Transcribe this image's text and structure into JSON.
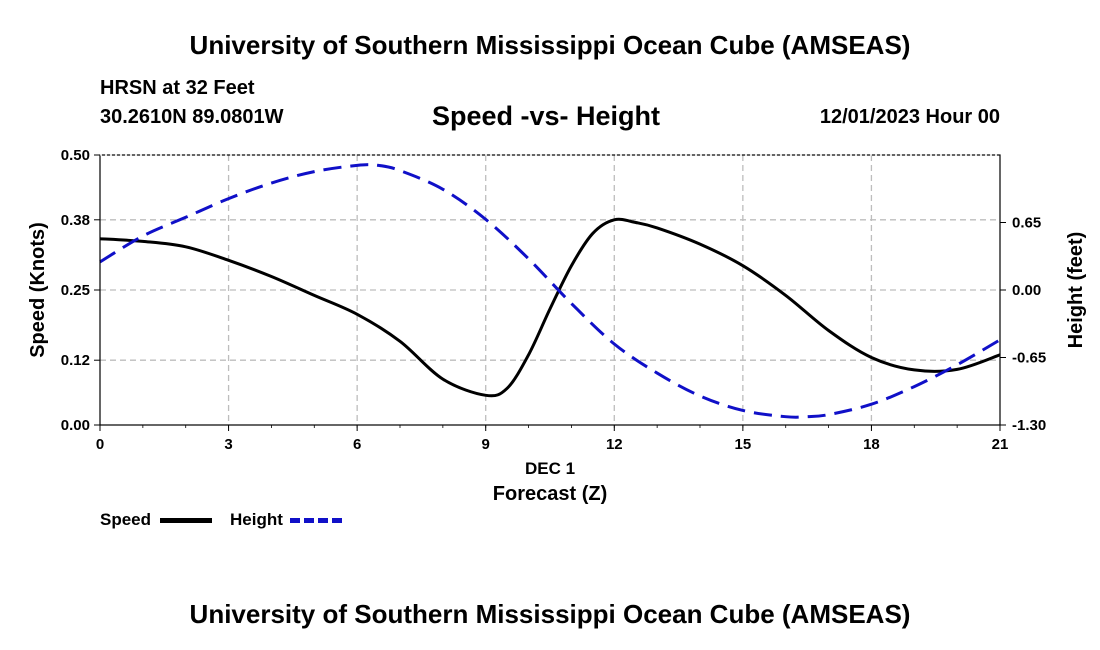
{
  "header": {
    "title": "University of Southern Mississippi Ocean Cube (AMSEAS)",
    "station": "HRSN at 32 Feet",
    "coords": "30.2610N  89.0801W",
    "subtitle": "Speed -vs- Height",
    "datetime": "12/01/2023 Hour 00"
  },
  "footer": {
    "title": "University of Southern Mississippi Ocean Cube (AMSEAS)"
  },
  "legend": {
    "speed": "Speed",
    "height": "Height"
  },
  "colors": {
    "speed": "#000000",
    "height": "#1010c8",
    "grid": "#bdbdbd"
  },
  "chart_data": {
    "type": "line",
    "title": "Speed -vs- Height",
    "xlabel": "Forecast (Z)",
    "xlabel_date": "DEC 1",
    "ylabel_left": "Speed (Knots)",
    "ylabel_right": "Height (feet)",
    "x_ticks": [
      0,
      3,
      6,
      9,
      12,
      15,
      18,
      21
    ],
    "xlim": [
      0,
      21
    ],
    "y_left_ticks": [
      "0.00",
      "0.12",
      "0.25",
      "0.38",
      "0.50"
    ],
    "y_left_lim": [
      0,
      0.5
    ],
    "y_right_ticks": [
      "-1.30",
      "-0.65",
      "0.00",
      "0.65"
    ],
    "y_right_lim": [
      -1.3,
      1.3
    ],
    "grid": true,
    "legend_position": "bottom-left",
    "series": [
      {
        "name": "Speed",
        "axis": "left",
        "style": "solid",
        "x": [
          0,
          1,
          2,
          3,
          4,
          5,
          6,
          7,
          8,
          9,
          9.5,
          10,
          10.5,
          11,
          11.5,
          12,
          12.5,
          13,
          14,
          15,
          16,
          17,
          18,
          19,
          20,
          21
        ],
        "values": [
          0.345,
          0.34,
          0.33,
          0.305,
          0.275,
          0.24,
          0.205,
          0.155,
          0.085,
          0.055,
          0.068,
          0.13,
          0.215,
          0.295,
          0.355,
          0.38,
          0.375,
          0.365,
          0.335,
          0.295,
          0.24,
          0.175,
          0.125,
          0.102,
          0.103,
          0.13
        ]
      },
      {
        "name": "Height",
        "axis": "right",
        "style": "dashed",
        "x": [
          0,
          1,
          2,
          3,
          4,
          5,
          6,
          6.5,
          7,
          8,
          9,
          10,
          11,
          12,
          13,
          14,
          15,
          16,
          16.5,
          17,
          18,
          19,
          20,
          21
        ],
        "values": [
          0.27,
          0.52,
          0.7,
          0.88,
          1.03,
          1.14,
          1.2,
          1.2,
          1.15,
          0.97,
          0.68,
          0.3,
          -0.13,
          -0.52,
          -0.8,
          -1.02,
          -1.16,
          -1.22,
          -1.22,
          -1.2,
          -1.1,
          -0.93,
          -0.72,
          -0.48
        ]
      }
    ]
  }
}
